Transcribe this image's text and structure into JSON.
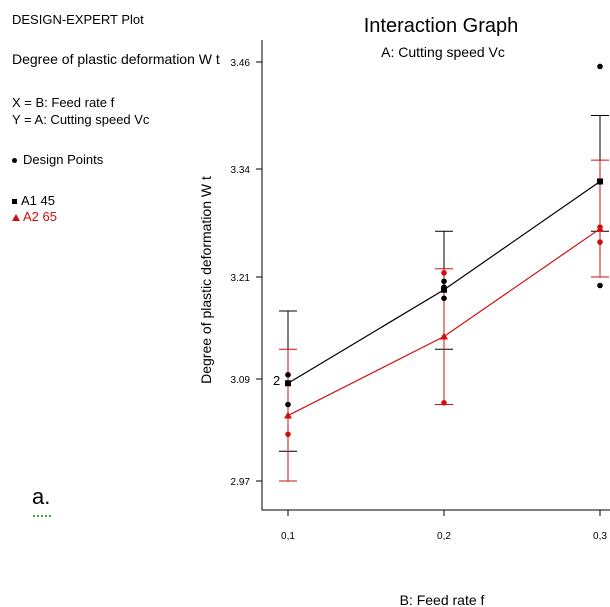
{
  "left_panel": {
    "heading": "DESIGN-EXPERT Plot",
    "response": "Degree of plastic deformation W t",
    "x_def": "X = B: Feed rate f",
    "y_def": "Y = A: Cutting speed Vc",
    "design_points": "Design Points",
    "legend": [
      {
        "label": "A1 45",
        "color": "#000000"
      },
      {
        "label": "A2 65",
        "color": "#d01010"
      }
    ]
  },
  "panel_label": "a.",
  "overlap_label": "2",
  "chart_data": {
    "type": "line",
    "title": "Interaction Graph",
    "subtitle": "A: Cutting speed Vc",
    "xlabel": "B: Feed rate f",
    "ylabel": "Degree of plastic deformation W t",
    "x_ticks": [
      "0,1",
      "0,2",
      "0,3"
    ],
    "x": [
      0.1,
      0.2,
      0.3
    ],
    "y_ticks": [
      2.97,
      3.09,
      3.21,
      3.34,
      3.46
    ],
    "y_tick_labels": [
      "2.97",
      "3.09",
      "3.21",
      "3.34",
      "3.46"
    ],
    "ylim": [
      2.94,
      3.48
    ],
    "series": [
      {
        "name": "A1 45",
        "color": "#000000",
        "values": [
          3.085,
          3.195,
          3.325
        ],
        "lsd_low": [
          3.005,
          3.125,
          3.265
        ],
        "lsd_high": [
          3.17,
          3.265,
          3.4
        ]
      },
      {
        "name": "A2 65",
        "color": "#d01010",
        "values": [
          3.047,
          3.14,
          3.268
        ],
        "lsd_low": [
          2.97,
          3.06,
          3.21
        ],
        "lsd_high": [
          3.125,
          3.22,
          3.35
        ]
      }
    ],
    "design_points": [
      {
        "x": 0.1,
        "y": 3.095,
        "color": "#000000"
      },
      {
        "x": 0.1,
        "y": 3.085,
        "color": "#000000"
      },
      {
        "x": 0.1,
        "y": 3.06,
        "color": "#000000"
      },
      {
        "x": 0.1,
        "y": 3.025,
        "color": "#d01010"
      },
      {
        "x": 0.2,
        "y": 3.215,
        "color": "#d01010"
      },
      {
        "x": 0.2,
        "y": 3.205,
        "color": "#000000"
      },
      {
        "x": 0.2,
        "y": 3.198,
        "color": "#000000"
      },
      {
        "x": 0.2,
        "y": 3.185,
        "color": "#000000"
      },
      {
        "x": 0.2,
        "y": 3.062,
        "color": "#d01010"
      },
      {
        "x": 0.3,
        "y": 3.455,
        "color": "#000000"
      },
      {
        "x": 0.3,
        "y": 3.27,
        "color": "#d01010"
      },
      {
        "x": 0.3,
        "y": 3.252,
        "color": "#d01010"
      },
      {
        "x": 0.3,
        "y": 3.2,
        "color": "#000000"
      }
    ],
    "legend_placement": "left",
    "grid": false
  }
}
